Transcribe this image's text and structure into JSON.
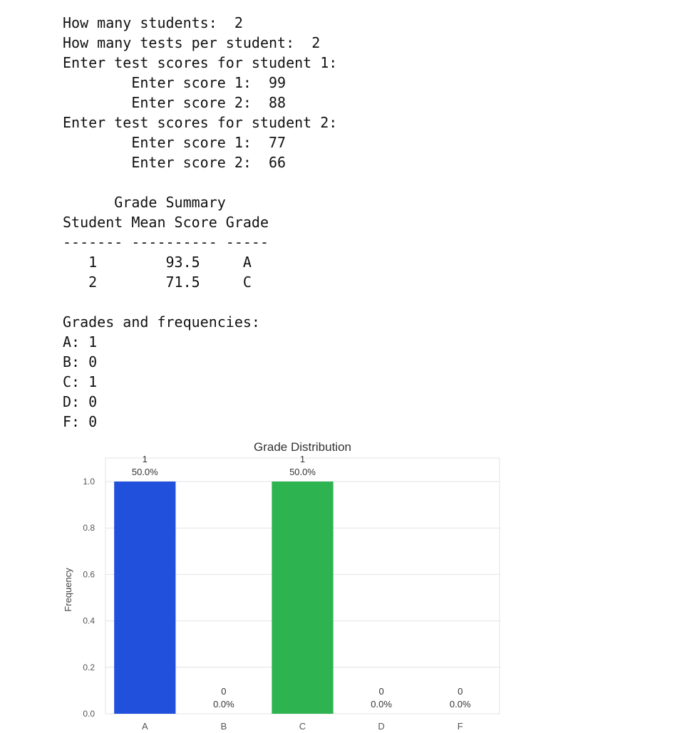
{
  "console": {
    "lines": [
      "How many students:  2",
      "How many tests per student:  2",
      "Enter test scores for student 1:",
      "        Enter score 1:  99",
      "        Enter score 2:  88",
      "Enter test scores for student 2:",
      "        Enter score 1:  77",
      "        Enter score 2:  66",
      "",
      "      Grade Summary",
      "Student Mean Score Grade",
      "------- ---------- -----",
      "   1        93.5     A",
      "   2        71.5     C",
      "",
      "Grades and frequencies:",
      "A: 1",
      "B: 0",
      "C: 1",
      "D: 0",
      "F: 0"
    ]
  },
  "chart_data": {
    "type": "bar",
    "title": "Grade Distribution",
    "xlabel": "",
    "ylabel": "Frequency",
    "categories": [
      "A",
      "B",
      "C",
      "D",
      "F"
    ],
    "values": [
      1,
      0,
      1,
      0,
      0
    ],
    "count_labels": [
      "1",
      "0",
      "1",
      "0",
      "0"
    ],
    "percent_labels": [
      "50.0%",
      "0.0%",
      "50.0%",
      "0.0%",
      "0.0%"
    ],
    "colors": [
      "#2150dc",
      "#ffffff",
      "#2db350",
      "#ffffff",
      "#ffffff"
    ],
    "ylim": [
      0,
      1.0
    ],
    "yticks": [
      0.0,
      0.2,
      0.4,
      0.6,
      0.8,
      1.0
    ],
    "ytick_labels": [
      "0.0",
      "0.2",
      "0.4",
      "0.6",
      "0.8",
      "1.0"
    ],
    "grid": true
  }
}
